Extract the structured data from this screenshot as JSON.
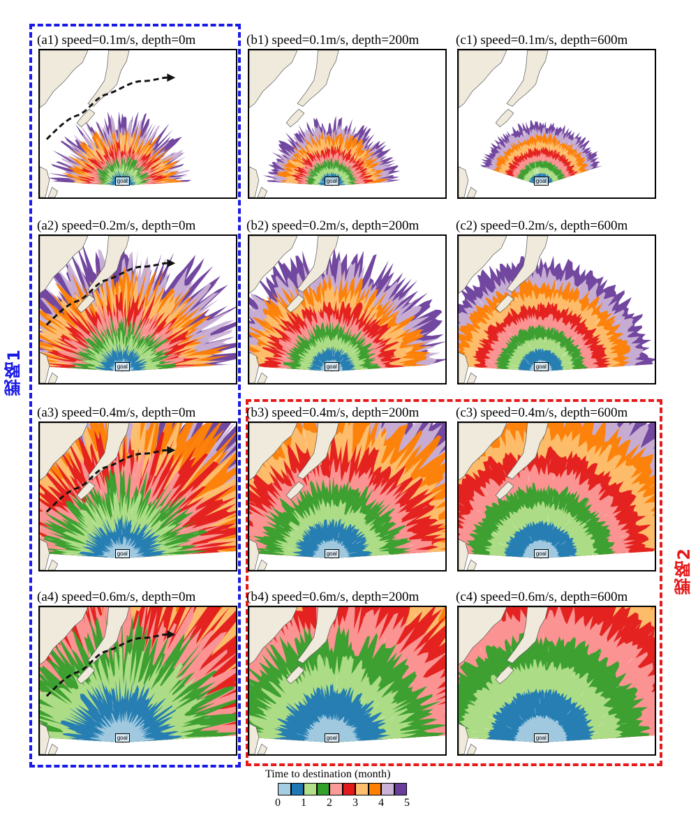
{
  "panels": [
    {
      "id": "a1",
      "title": "(a1) speed=0.1m/s, depth=0m",
      "goal": "goal",
      "speed": 0.1,
      "depth": 0,
      "route": true
    },
    {
      "id": "b1",
      "title": "(b1) speed=0.1m/s, depth=200m",
      "goal": "goal",
      "speed": 0.1,
      "depth": 200,
      "route": false
    },
    {
      "id": "c1",
      "title": "(c1) speed=0.1m/s, depth=600m",
      "goal": "goal",
      "speed": 0.1,
      "depth": 600,
      "route": false
    },
    {
      "id": "a2",
      "title": "(a2) speed=0.2m/s, depth=0m",
      "goal": "goal",
      "speed": 0.2,
      "depth": 0,
      "route": true
    },
    {
      "id": "b2",
      "title": "(b2) speed=0.2m/s, depth=200m",
      "goal": "goal",
      "speed": 0.2,
      "depth": 200,
      "route": false
    },
    {
      "id": "c2",
      "title": "(c2) speed=0.2m/s, depth=600m",
      "goal": "goal",
      "speed": 0.2,
      "depth": 600,
      "route": false
    },
    {
      "id": "a3",
      "title": "(a3) speed=0.4m/s, depth=0m",
      "goal": "goal",
      "speed": 0.4,
      "depth": 0,
      "route": true
    },
    {
      "id": "b3",
      "title": "(b3) speed=0.4m/s, depth=200m",
      "goal": "goal",
      "speed": 0.4,
      "depth": 200,
      "route": false
    },
    {
      "id": "c3",
      "title": "(c3) speed=0.4m/s, depth=600m",
      "goal": "goal",
      "speed": 0.4,
      "depth": 600,
      "route": false
    },
    {
      "id": "a4",
      "title": "(a4) speed=0.6m/s, depth=0m",
      "goal": "goal",
      "speed": 0.6,
      "depth": 0,
      "route": true
    },
    {
      "id": "b4",
      "title": "(b4) speed=0.6m/s, depth=200m",
      "goal": "goal",
      "speed": 0.6,
      "depth": 200,
      "route": false
    },
    {
      "id": "c4",
      "title": "(c4) speed=0.6m/s, depth=600m",
      "goal": "goal",
      "speed": 0.6,
      "depth": 600,
      "route": false
    }
  ],
  "strategies": {
    "strategy1": {
      "label": "戦略1",
      "color": "#1a1ae6"
    },
    "strategy2": {
      "label": "戦略2",
      "color": "#e61a1a"
    }
  },
  "colorbar": {
    "title": "Time to destination (month)",
    "colors": [
      "#a6cee3",
      "#1f78b4",
      "#b2df8a",
      "#33a02c",
      "#fb9a99",
      "#e31a1c",
      "#fdbf6f",
      "#ff7f00",
      "#cab2d6",
      "#6a3d9a"
    ],
    "ticks": [
      "0",
      "1",
      "2",
      "3",
      "4",
      "5"
    ]
  },
  "colors": {
    "land": "#efeadb",
    "route": "#111111"
  }
}
